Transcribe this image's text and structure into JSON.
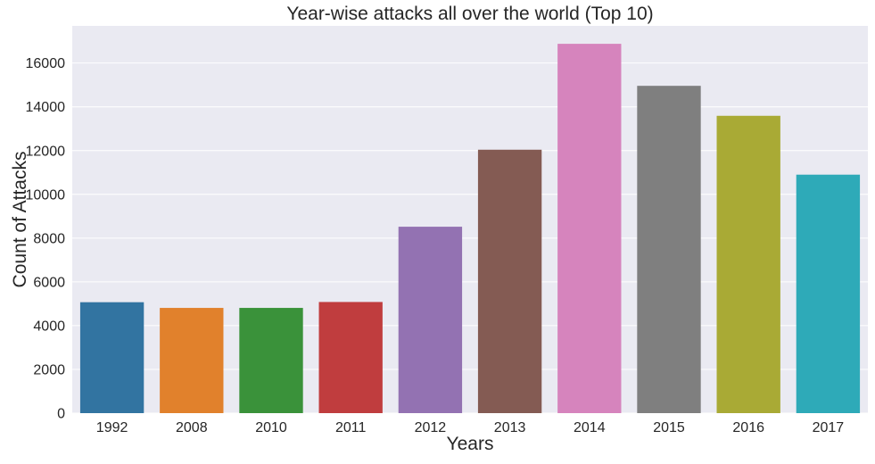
{
  "chart_data": {
    "type": "bar",
    "title": "Year-wise attacks all over the world (Top 10)",
    "xlabel": "Years",
    "ylabel": "Count of Attacks",
    "categories": [
      "1992",
      "2008",
      "2010",
      "2011",
      "2012",
      "2013",
      "2014",
      "2015",
      "2016",
      "2017"
    ],
    "values": [
      5070,
      4810,
      4810,
      5080,
      8520,
      12040,
      16880,
      14960,
      13590,
      10900
    ],
    "colors": [
      "#3274a1",
      "#e1812c",
      "#3a923a",
      "#c03d3e",
      "#9372b2",
      "#845b53",
      "#d684bd",
      "#7f7f7f",
      "#a9aa35",
      "#2eaab8"
    ],
    "ylim": [
      0,
      17700
    ],
    "yticks": [
      0,
      2000,
      4000,
      6000,
      8000,
      10000,
      12000,
      14000,
      16000
    ],
    "grid": true,
    "background": "#eaeaf2",
    "grid_color": "#ffffff"
  }
}
